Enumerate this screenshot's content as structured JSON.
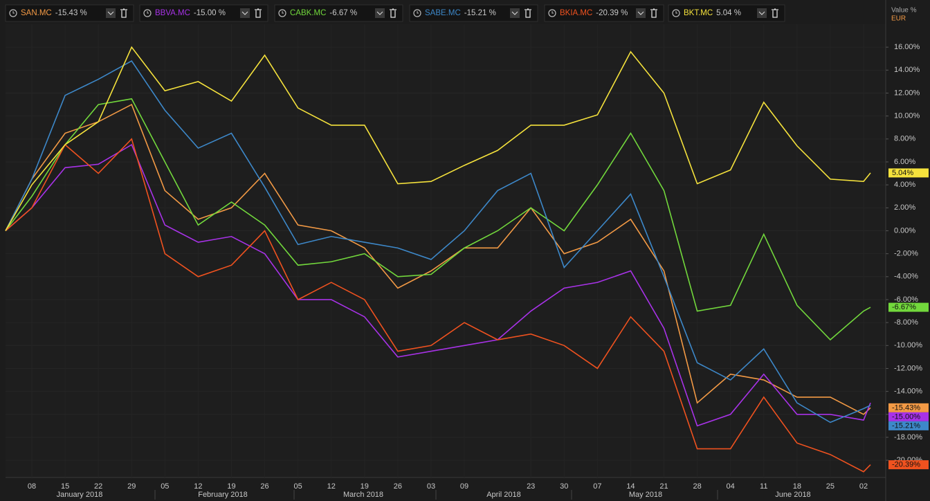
{
  "chart_data": {
    "type": "line",
    "axis_title": "Value %",
    "currency": "EUR",
    "categories": [
      null,
      "08",
      "15",
      "22",
      "29",
      "05",
      "12",
      "19",
      "26",
      "05",
      "12",
      "19",
      "26",
      "03",
      "09",
      null,
      "23",
      "30",
      "07",
      "14",
      "21",
      "28",
      "04",
      "11",
      "18",
      "25",
      "02",
      null
    ],
    "months": [
      "January 2018",
      "February 2018",
      "March 2018",
      "April 2018",
      "May 2018",
      "June 2018"
    ],
    "ylim": [
      -21.5,
      18
    ],
    "yticks": [
      {
        "value": 16,
        "label": "16.00%"
      },
      {
        "value": 14,
        "label": "14.00%"
      },
      {
        "value": 12,
        "label": "12.00%"
      },
      {
        "value": 10,
        "label": "10.00%"
      },
      {
        "value": 8,
        "label": "8.00%"
      },
      {
        "value": 6,
        "label": "6.00%"
      },
      {
        "value": 4,
        "label": "4.00%"
      },
      {
        "value": 2,
        "label": "2.00%"
      },
      {
        "value": 0,
        "label": "0.00%"
      },
      {
        "value": -2,
        "label": "-2.00%"
      },
      {
        "value": -4,
        "label": "-4.00%"
      },
      {
        "value": -6,
        "label": "-6.00%"
      },
      {
        "value": -8,
        "label": "-8.00%"
      },
      {
        "value": -10,
        "label": "-10.00%"
      },
      {
        "value": -12,
        "label": "-12.00%"
      },
      {
        "value": -14,
        "label": "-14.00%"
      },
      {
        "value": -16,
        "label": "-16.00%"
      },
      {
        "value": -18,
        "label": "-18.00%"
      },
      {
        "value": -20,
        "label": "-20.00%"
      }
    ],
    "grid": true,
    "series": [
      {
        "name": "SAN.MC",
        "header_change": "-15.43 %",
        "color": "#f39a45",
        "values": [
          0,
          4.5,
          8.5,
          9.5,
          11,
          3.5,
          1,
          2,
          5,
          0.5,
          0,
          -1.5,
          -5,
          -3.5,
          -1.5,
          -1.5,
          2,
          -2,
          -1,
          1,
          -3.5,
          -15,
          -12.5,
          -13,
          -14.5,
          -14.5,
          -16,
          -15.43
        ],
        "value_labels": [
          null,
          null,
          null,
          null,
          null,
          null,
          null,
          null,
          null,
          null,
          null,
          null,
          null,
          null,
          null,
          null,
          null,
          null,
          null,
          null,
          null,
          null,
          null,
          null,
          null,
          null,
          null,
          "-15.43%"
        ]
      },
      {
        "name": "BBVA.MC",
        "header_change": "-15.00 %",
        "color": "#a832e8",
        "values": [
          0,
          2,
          5.5,
          5.8,
          7.5,
          0.5,
          -1,
          -0.5,
          -2,
          -6,
          -6,
          -7.5,
          -11,
          -10.5,
          -10,
          -9.5,
          -7,
          -5,
          -4.5,
          -3.5,
          -8.5,
          -17,
          -16,
          -12.5,
          -16,
          -16,
          -16.5,
          -15.0
        ],
        "value_labels": [
          null,
          null,
          null,
          null,
          null,
          null,
          null,
          null,
          null,
          null,
          null,
          null,
          null,
          null,
          null,
          null,
          null,
          null,
          null,
          null,
          null,
          null,
          null,
          null,
          null,
          null,
          null,
          "-15.00%"
        ]
      },
      {
        "name": "CABK.MC",
        "header_change": "-6.67 %",
        "color": "#72d83c",
        "values": [
          0,
          3,
          7.5,
          11,
          11.5,
          6,
          0.5,
          2.5,
          0.5,
          -3,
          -2.7,
          -2,
          -4,
          -3.8,
          -1.5,
          0,
          2,
          0,
          4,
          8.5,
          3.5,
          -7,
          -6.5,
          -0.3,
          -6.5,
          -9.5,
          -7,
          -6.67
        ],
        "value_labels": [
          null,
          null,
          null,
          null,
          null,
          null,
          null,
          null,
          null,
          null,
          null,
          null,
          null,
          null,
          null,
          null,
          null,
          null,
          null,
          null,
          null,
          null,
          null,
          null,
          null,
          null,
          null,
          "-6.67%"
        ]
      },
      {
        "name": "SABE.MC",
        "header_change": "-15.21 %",
        "color": "#3d88c9",
        "values": [
          0,
          4.5,
          11.8,
          13.2,
          14.8,
          10.5,
          7.2,
          8.5,
          3.8,
          -1.2,
          -0.5,
          -1,
          -1.5,
          -2.5,
          0,
          3.5,
          5,
          -3.2,
          0,
          3.2,
          -4,
          -11.5,
          -13,
          -10.3,
          -15,
          -16.7,
          -15.5,
          -15.21
        ],
        "value_labels": [
          null,
          null,
          null,
          null,
          null,
          null,
          null,
          null,
          null,
          null,
          null,
          null,
          null,
          null,
          null,
          null,
          null,
          null,
          null,
          null,
          null,
          null,
          null,
          null,
          null,
          null,
          null,
          "-15.21%"
        ]
      },
      {
        "name": "BKIA.MC",
        "header_change": "-20.39 %",
        "color": "#f0521f",
        "values": [
          0,
          2,
          7.5,
          5,
          8,
          -2,
          -4,
          -3,
          0,
          -6,
          -4.5,
          -6,
          -10.5,
          -10,
          -8,
          -9.5,
          -9,
          -10,
          -12,
          -7.5,
          -10.5,
          -19,
          -19,
          -14.5,
          -18.5,
          -19.5,
          -21,
          -20.39
        ],
        "value_labels": [
          null,
          null,
          null,
          null,
          null,
          null,
          null,
          null,
          null,
          null,
          null,
          null,
          null,
          null,
          null,
          null,
          null,
          null,
          null,
          null,
          null,
          null,
          null,
          null,
          null,
          null,
          null,
          "-20.39%"
        ]
      },
      {
        "name": "BKT.MC",
        "header_change": "5.04 %",
        "color": "#f5e23c",
        "values": [
          0,
          4,
          7.5,
          9.5,
          16,
          12.2,
          13,
          11.3,
          15.3,
          10.7,
          9.2,
          9.2,
          4.1,
          4.3,
          5.7,
          7,
          9.2,
          9.2,
          10.1,
          15.6,
          12,
          4.1,
          5.3,
          11.2,
          7.4,
          4.5,
          4.3,
          5.04
        ],
        "value_labels": [
          null,
          null,
          null,
          null,
          null,
          null,
          null,
          null,
          null,
          null,
          null,
          null,
          null,
          null,
          null,
          null,
          null,
          null,
          null,
          null,
          null,
          null,
          null,
          null,
          null,
          null,
          null,
          "5.04%"
        ]
      }
    ]
  }
}
